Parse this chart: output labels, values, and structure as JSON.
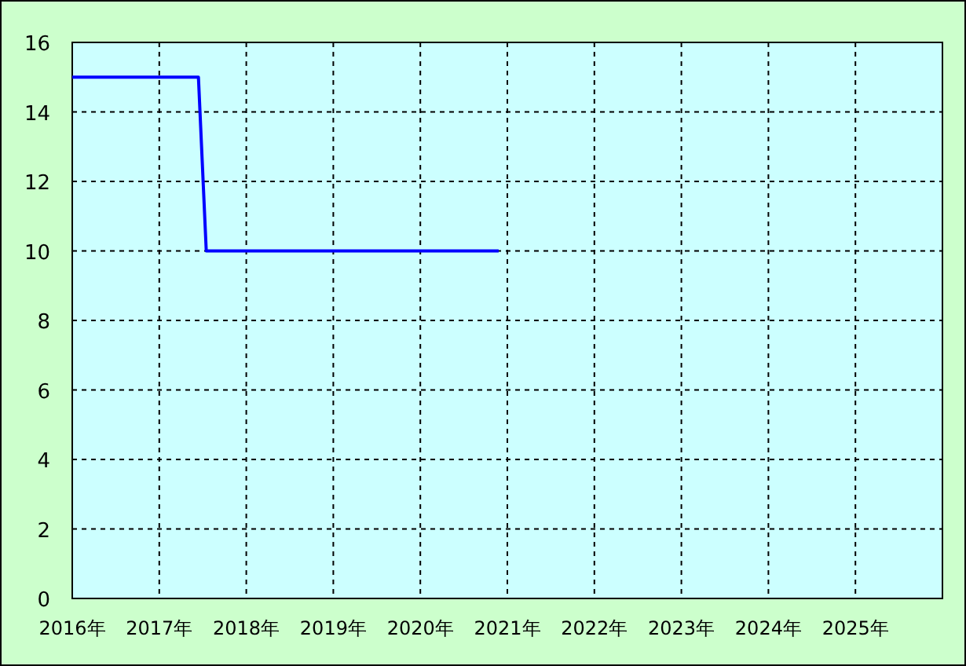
{
  "chart_data": {
    "type": "line",
    "grid": true,
    "xlim": [
      2016,
      2026
    ],
    "ylim": [
      0,
      16
    ],
    "xticks": [
      {
        "value": 2016,
        "label": "2016年"
      },
      {
        "value": 2017,
        "label": "2017年"
      },
      {
        "value": 2018,
        "label": "2018年"
      },
      {
        "value": 2019,
        "label": "2019年"
      },
      {
        "value": 2020,
        "label": "2020年"
      },
      {
        "value": 2021,
        "label": "2021年"
      },
      {
        "value": 2022,
        "label": "2022年"
      },
      {
        "value": 2023,
        "label": "2023年"
      },
      {
        "value": 2024,
        "label": "2024年"
      },
      {
        "value": 2025,
        "label": "2025年"
      }
    ],
    "yticks": [
      0,
      2,
      4,
      6,
      8,
      10,
      12,
      14,
      16
    ],
    "series": [
      {
        "color": "#0000ff",
        "x": [
          2016,
          2017.45,
          2017.54,
          2020.9
        ],
        "values": [
          15,
          15,
          10,
          10
        ]
      }
    ]
  }
}
